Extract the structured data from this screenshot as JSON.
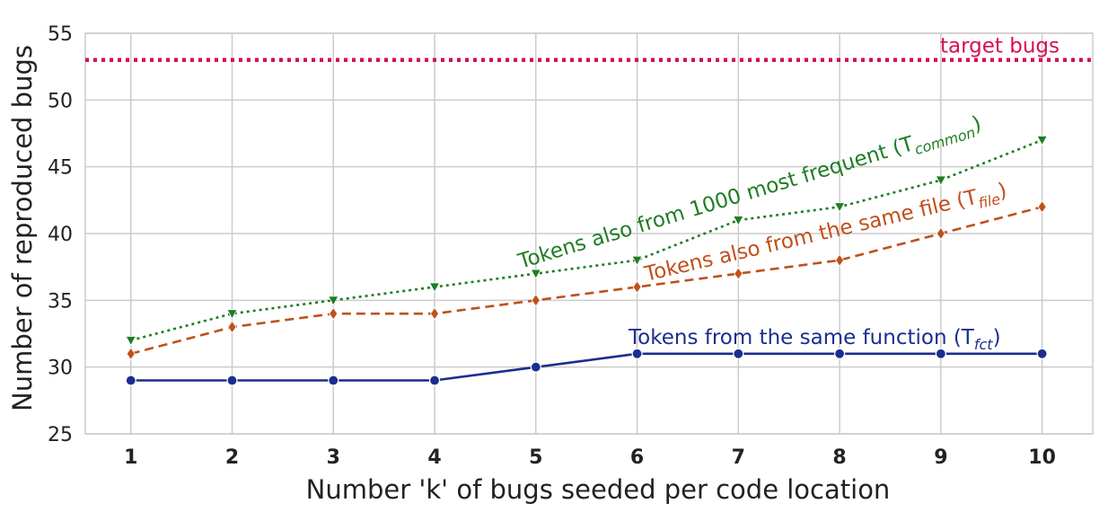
{
  "chart_data": {
    "type": "line",
    "xlabel": "Number  'k'  of  bugs  seeded  per code location",
    "ylabel": "Number of reproduced bugs",
    "x": [
      1,
      2,
      3,
      4,
      5,
      6,
      7,
      8,
      9,
      10
    ],
    "xlim": [
      0.55,
      10.5
    ],
    "ylim": [
      25,
      55
    ],
    "yticks": [
      25,
      30,
      35,
      40,
      45,
      50,
      55
    ],
    "grid": true,
    "series": [
      {
        "key": "fct",
        "label_prefix": "Tokens from the same function (T",
        "label_sub": "fct",
        "label_suffix": ")",
        "values": [
          29,
          29,
          29,
          29,
          30,
          31,
          31,
          31,
          31,
          31
        ],
        "color": "#1a2e8f",
        "style": "solid",
        "marker": "circle"
      },
      {
        "key": "file",
        "label_prefix": "Tokens also from the same file (T",
        "label_sub": "file",
        "label_suffix": ")",
        "values": [
          31,
          33,
          34,
          34,
          35,
          36,
          37,
          38,
          40,
          42
        ],
        "color": "#c0501a",
        "style": "dashed",
        "marker": "diamond"
      },
      {
        "key": "common",
        "label_prefix": "Tokens also from 1000 most frequent (T",
        "label_sub": "common",
        "label_suffix": ")",
        "values": [
          32,
          34,
          35,
          36,
          37,
          38,
          41,
          42,
          44,
          47
        ],
        "color": "#1e7d24",
        "style": "dotted",
        "marker": "triangle-down"
      }
    ],
    "reference_line": {
      "label": "target bugs",
      "value": 53,
      "color": "#d6104f",
      "style": "dotted"
    }
  }
}
